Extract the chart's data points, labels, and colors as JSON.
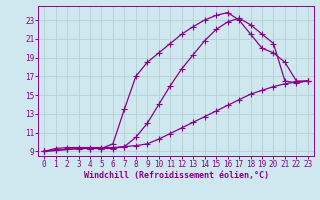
{
  "bg_color": "#cfe8ef",
  "line_color": "#8b008b",
  "grid_color": "#b0cccc",
  "xlabel": "Windchill (Refroidissement éolien,°C)",
  "xlim": [
    -0.5,
    23.5
  ],
  "ylim": [
    8.5,
    24.5
  ],
  "yticks": [
    9,
    11,
    13,
    15,
    17,
    19,
    21,
    23
  ],
  "xticks": [
    0,
    1,
    2,
    3,
    4,
    5,
    6,
    7,
    8,
    9,
    10,
    11,
    12,
    13,
    14,
    15,
    16,
    17,
    18,
    19,
    20,
    21,
    22,
    23
  ],
  "line1_x": [
    0,
    1,
    2,
    3,
    4,
    5,
    6,
    7,
    8,
    9,
    10,
    11,
    12,
    13,
    14,
    15,
    16,
    17,
    18,
    19,
    20,
    21,
    22,
    23
  ],
  "line1_y": [
    9.0,
    9.3,
    9.4,
    9.4,
    9.4,
    9.4,
    9.4,
    9.5,
    9.6,
    9.8,
    10.3,
    10.9,
    11.5,
    12.1,
    12.7,
    13.3,
    13.9,
    14.5,
    15.1,
    15.5,
    15.9,
    16.2,
    16.4,
    16.5
  ],
  "line2_x": [
    0,
    1,
    2,
    3,
    4,
    5,
    6,
    7,
    8,
    9,
    10,
    11,
    12,
    13,
    14,
    15,
    16,
    17,
    18,
    19,
    20,
    21,
    22,
    23
  ],
  "line2_y": [
    9.0,
    9.1,
    9.2,
    9.3,
    9.3,
    9.3,
    9.3,
    9.5,
    10.5,
    12.0,
    14.0,
    16.0,
    17.8,
    19.3,
    20.8,
    22.0,
    22.8,
    23.2,
    22.5,
    21.5,
    20.5,
    16.5,
    16.3,
    16.5
  ],
  "line3_x": [
    0,
    1,
    2,
    3,
    4,
    5,
    6,
    7,
    8,
    9,
    10,
    11,
    12,
    13,
    14,
    15,
    16,
    17,
    18,
    19,
    20,
    21,
    22,
    23
  ],
  "line3_y": [
    9.0,
    9.1,
    9.2,
    9.3,
    9.3,
    9.3,
    9.8,
    13.5,
    17.0,
    18.5,
    19.5,
    20.5,
    21.5,
    22.3,
    23.0,
    23.5,
    23.8,
    23.0,
    21.5,
    20.0,
    19.5,
    18.5,
    16.5,
    16.5
  ],
  "marker": "+",
  "markersize": 4,
  "linewidth": 0.9,
  "tick_fontsize": 5.5,
  "xlabel_fontsize": 6.0
}
